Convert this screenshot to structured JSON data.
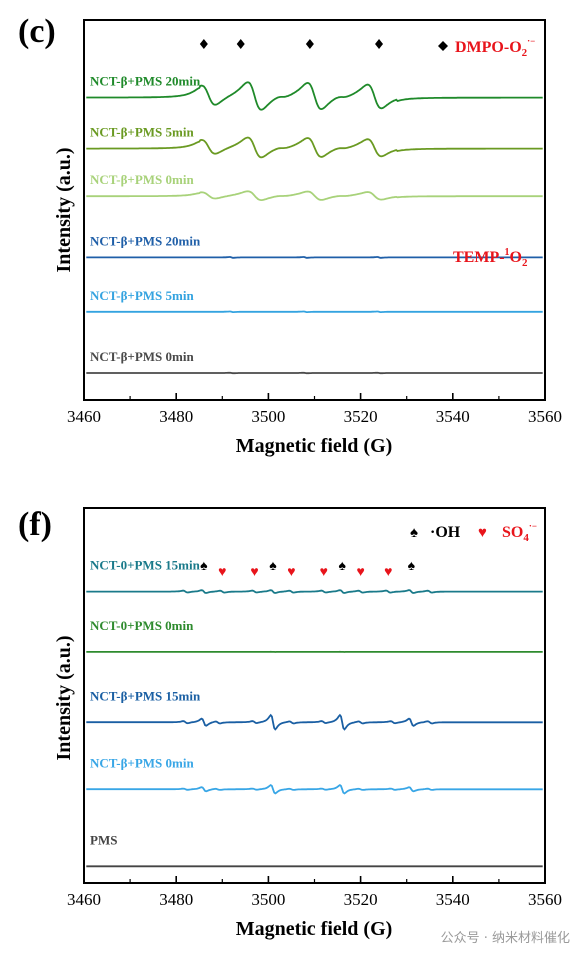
{
  "watermark": "公众号 · 纳米材料催化",
  "chart_data": [
    {
      "type": "line",
      "panel_label": "(c)",
      "xlabel": "Magnetic field (G)",
      "ylabel": "Intensity (a.u.)",
      "xlim": [
        3460,
        3560
      ],
      "xticks": [
        3460,
        3480,
        3500,
        3520,
        3540,
        3560
      ],
      "legend": [
        {
          "symbol": "diamond",
          "label": "DMPO-O",
          "sub": "2",
          "sup": "·−",
          "color": "#e8141b"
        }
      ],
      "annotations": [
        {
          "text": "TEMP-",
          "sup": "1",
          "rest": "O",
          "sub": "2",
          "color": "#e8141b"
        }
      ],
      "peak_markers": [
        {
          "symbol": "diamond",
          "x": 3486
        },
        {
          "symbol": "diamond",
          "x": 3494
        },
        {
          "symbol": "diamond",
          "x": 3509
        },
        {
          "symbol": "diamond",
          "x": 3524
        }
      ],
      "series": [
        {
          "name": "NCT-β+PMS 20min",
          "color": "#1f8a2a",
          "kind": "dmpo",
          "amp": 1.0,
          "base": 0.86
        },
        {
          "name": "NCT-β+PMS 5min",
          "color": "#6a9a22",
          "kind": "dmpo",
          "amp": 0.72,
          "base": 0.71
        },
        {
          "name": "NCT-β+PMS 0min",
          "color": "#a8d27a",
          "kind": "dmpo",
          "amp": 0.32,
          "base": 0.57
        },
        {
          "name": "NCT-β+PMS 20min",
          "color": "#1f5fa8",
          "kind": "temp",
          "amp": 0.04,
          "base": 0.39
        },
        {
          "name": "NCT-β+PMS 5min",
          "color": "#34a3e0",
          "kind": "temp",
          "amp": 0.03,
          "base": 0.23
        },
        {
          "name": "NCT-β+PMS 0min",
          "color": "#4a4a4a",
          "kind": "temp",
          "amp": 0.02,
          "base": 0.05
        }
      ]
    },
    {
      "type": "line",
      "panel_label": "(f)",
      "xlabel": "Magnetic field (G)",
      "ylabel": "Intensity (a.u.)",
      "xlim": [
        3460,
        3560
      ],
      "xticks": [
        3460,
        3480,
        3500,
        3520,
        3540,
        3560
      ],
      "legend": [
        {
          "symbol": "spade",
          "label": "·OH",
          "color": "#000000"
        },
        {
          "symbol": "heart",
          "label": "SO",
          "sub": "4",
          "sup": "·−",
          "color": "#e8141b"
        }
      ],
      "peak_markers": [
        {
          "symbol": "spade",
          "x": 3486
        },
        {
          "symbol": "heart",
          "x": 3490
        },
        {
          "symbol": "heart",
          "x": 3497
        },
        {
          "symbol": "spade",
          "x": 3501
        },
        {
          "symbol": "heart",
          "x": 3505
        },
        {
          "symbol": "heart",
          "x": 3512
        },
        {
          "symbol": "spade",
          "x": 3516
        },
        {
          "symbol": "heart",
          "x": 3520
        },
        {
          "symbol": "heart",
          "x": 3526
        },
        {
          "symbol": "spade",
          "x": 3531
        }
      ],
      "series": [
        {
          "name": "NCT-0+PMS 15min",
          "color": "#1a7a8a",
          "kind": "mix",
          "amp": 0.14,
          "base": 0.84
        },
        {
          "name": "NCT-0+PMS 0min",
          "color": "#2e8b2e",
          "kind": "flat",
          "amp": 0.01,
          "base": 0.66
        },
        {
          "name": "NCT-β+PMS 15min",
          "color": "#1a5fa3",
          "kind": "oh",
          "amp": 0.55,
          "base": 0.45
        },
        {
          "name": "NCT-β+PMS 0min",
          "color": "#38a6e6",
          "kind": "oh",
          "amp": 0.32,
          "base": 0.25
        },
        {
          "name": "PMS",
          "color": "#444444",
          "kind": "flat",
          "amp": 0.005,
          "base": 0.02
        }
      ]
    }
  ]
}
